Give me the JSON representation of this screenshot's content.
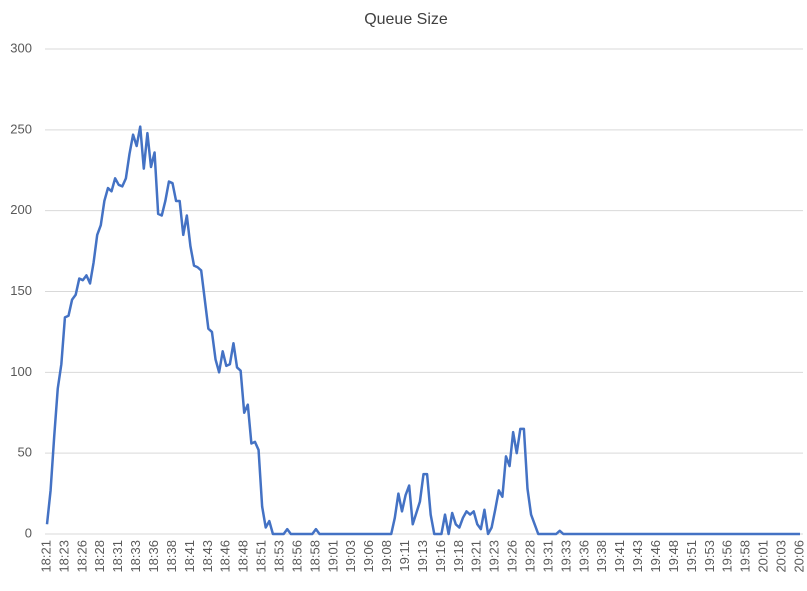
{
  "chart_data": {
    "type": "line",
    "title": "Queue Size",
    "color": "#4472c4",
    "grid": true,
    "ylim": [
      0,
      300
    ],
    "yticks": [
      0,
      50,
      100,
      150,
      200,
      250,
      300
    ],
    "categories": [
      "18:21",
      null,
      null,
      null,
      null,
      "18:23",
      null,
      null,
      null,
      null,
      "18:26",
      null,
      null,
      null,
      null,
      "18:28",
      null,
      null,
      null,
      null,
      "18:31",
      null,
      null,
      null,
      null,
      "18:33",
      null,
      null,
      null,
      null,
      "18:36",
      null,
      null,
      null,
      null,
      "18:38",
      null,
      null,
      null,
      null,
      "18:41",
      null,
      null,
      null,
      null,
      "18:43",
      null,
      null,
      null,
      null,
      "18:46",
      null,
      null,
      null,
      null,
      "18:48",
      null,
      null,
      null,
      null,
      "18:51",
      null,
      null,
      null,
      null,
      "18:53",
      null,
      null,
      null,
      null,
      "18:56",
      null,
      null,
      null,
      null,
      "18:58",
      null,
      null,
      null,
      null,
      "19:01",
      null,
      null,
      null,
      null,
      "19:03",
      null,
      null,
      null,
      null,
      "19:06",
      null,
      null,
      null,
      null,
      "19:08",
      null,
      null,
      null,
      null,
      "19:11",
      null,
      null,
      null,
      null,
      "19:13",
      null,
      null,
      null,
      null,
      "19:16",
      null,
      null,
      null,
      null,
      "19:18",
      null,
      null,
      null,
      null,
      "19:21",
      null,
      null,
      null,
      null,
      "19:23",
      null,
      null,
      null,
      null,
      "19:26",
      null,
      null,
      null,
      null,
      "19:28",
      null,
      null,
      null,
      null,
      "19:31",
      null,
      null,
      null,
      null,
      "19:33",
      null,
      null,
      null,
      null,
      "19:36",
      null,
      null,
      null,
      null,
      "19:38",
      null,
      null,
      null,
      null,
      "19:41",
      null,
      null,
      null,
      null,
      "19:43",
      null,
      null,
      null,
      null,
      "19:46",
      null,
      null,
      null,
      null,
      "19:48",
      null,
      null,
      null,
      null,
      "19:51",
      null,
      null,
      null,
      null,
      "19:53",
      null,
      null,
      null,
      null,
      "19:56",
      null,
      null,
      null,
      null,
      "19:58",
      null,
      null,
      null,
      null,
      "20:01",
      null,
      null,
      null,
      null,
      "20:03",
      null,
      null,
      null,
      null,
      "20:06"
    ],
    "values": [
      6,
      27,
      60,
      90,
      105,
      134,
      135,
      145,
      148,
      158,
      157,
      160,
      155,
      168,
      185,
      191,
      206,
      214,
      212,
      220,
      216,
      215,
      220,
      235,
      247,
      240,
      252,
      226,
      248,
      227,
      236,
      198,
      197,
      206,
      218,
      217,
      206,
      206,
      185,
      197,
      178,
      166,
      165,
      163,
      145,
      127,
      125,
      108,
      100,
      113,
      104,
      105,
      118,
      103,
      101,
      75,
      80,
      56,
      57,
      52,
      17,
      4,
      8,
      0,
      0,
      0,
      0,
      3,
      0,
      0,
      0,
      0,
      0,
      0,
      0,
      3,
      0,
      0,
      0,
      0,
      0,
      0,
      0,
      0,
      0,
      0,
      0,
      0,
      0,
      0,
      0,
      0,
      0,
      0,
      0,
      0,
      0,
      10,
      25,
      14,
      24,
      30,
      6,
      13,
      20,
      37,
      37,
      12,
      0,
      0,
      0,
      12,
      0,
      13,
      6,
      4,
      10,
      14,
      12,
      14,
      6,
      3,
      15,
      0,
      4,
      15,
      27,
      23,
      48,
      42,
      63,
      50,
      65,
      65,
      28,
      12,
      6,
      0,
      0,
      0,
      0,
      0,
      0,
      2,
      0,
      0,
      0,
      0,
      0,
      0,
      0,
      0,
      0,
      0,
      0,
      0,
      0,
      0,
      0,
      0,
      0,
      0,
      0,
      0,
      0,
      0,
      0,
      0,
      0,
      0,
      0,
      0,
      0,
      0,
      0,
      0,
      0,
      0,
      0,
      0,
      0,
      0,
      0,
      0,
      0,
      0,
      0,
      0,
      0,
      0,
      0,
      0,
      0,
      0,
      0,
      0,
      0,
      0,
      0,
      0,
      0,
      0,
      0,
      0,
      0,
      0,
      0,
      0,
      0,
      0,
      0
    ]
  }
}
